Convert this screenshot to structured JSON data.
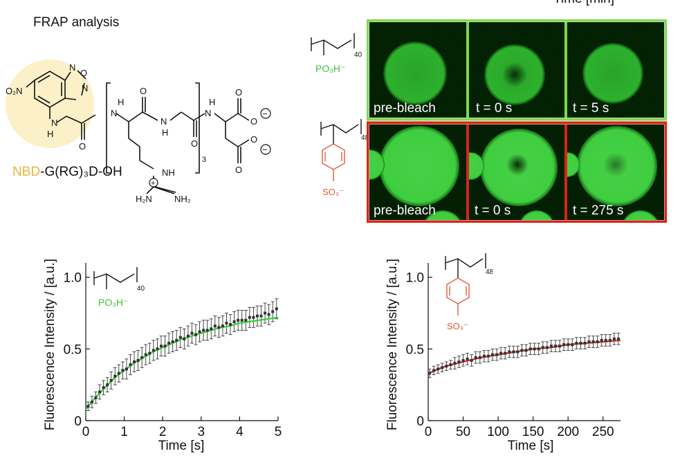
{
  "header": {
    "title": "FRAP analysis",
    "time_cut": "Time [min]"
  },
  "molecule": {
    "atoms": {
      "nitro": "O₂N",
      "ring_n_top": "N",
      "ring_o": "O",
      "ring_n_right": "N",
      "nh_1": "N",
      "h_1": "H",
      "nh_2": "H",
      "n_2": "N",
      "nh_3": "N",
      "h_3": "H",
      "nh_4": "H",
      "n_4": "N",
      "o_1": "O",
      "o_2": "O",
      "o_3": "O",
      "o_4": "O",
      "o_5": "O",
      "o_6": "O",
      "o_7": "O",
      "nh_g": "NH",
      "h2n": "H₂N",
      "nh2": "NH₂",
      "repeat": "3",
      "plus": "+",
      "minus": "−"
    },
    "label_prefix": "NBD",
    "label_suffix": "-G(RG)₃D-OH",
    "prefix_color": "#E8B53A",
    "highlight_color": "#FBF0C8"
  },
  "polymers": {
    "po3": {
      "n": "40",
      "group": "PO₃H⁻",
      "color": "#3DBE3D"
    },
    "so3": {
      "n": "48",
      "group": "SO₃⁻",
      "color": "#E05A3A"
    }
  },
  "micrographs": {
    "top_border": "#7FD855",
    "bottom_border": "#D62518",
    "top_labels": [
      "pre-bleach",
      "t = 0 s",
      "t = 5 s"
    ],
    "bottom_labels": [
      "pre-bleach",
      "t = 0 s",
      "t = 275 s"
    ]
  },
  "chart_data": [
    {
      "type": "scatter",
      "ylabel": "Fluorescence Intensity / [a.u.]",
      "xlabel": "Time [s]",
      "xlim": [
        0,
        5
      ],
      "ylim": [
        0,
        1.1
      ],
      "x_ticks": [
        "0",
        "1",
        "2",
        "3",
        "4",
        "5"
      ],
      "y_ticks": [
        "0",
        "0.5",
        "1.0"
      ],
      "fit_color": "#3CD33C",
      "data": {
        "x": [
          0.06,
          0.16,
          0.26,
          0.36,
          0.46,
          0.56,
          0.66,
          0.76,
          0.86,
          0.96,
          1.06,
          1.16,
          1.26,
          1.36,
          1.46,
          1.56,
          1.66,
          1.76,
          1.86,
          1.96,
          2.06,
          2.16,
          2.26,
          2.36,
          2.46,
          2.56,
          2.66,
          2.76,
          2.86,
          2.96,
          3.06,
          3.16,
          3.26,
          3.36,
          3.46,
          3.56,
          3.66,
          3.76,
          3.86,
          3.96,
          4.06,
          4.16,
          4.26,
          4.36,
          4.46,
          4.56,
          4.66,
          4.76,
          4.86,
          4.96
        ],
        "y": [
          0.1,
          0.13,
          0.16,
          0.2,
          0.23,
          0.25,
          0.28,
          0.31,
          0.33,
          0.35,
          0.36,
          0.39,
          0.41,
          0.42,
          0.44,
          0.46,
          0.47,
          0.49,
          0.5,
          0.52,
          0.52,
          0.54,
          0.55,
          0.56,
          0.58,
          0.57,
          0.59,
          0.61,
          0.6,
          0.62,
          0.63,
          0.63,
          0.64,
          0.66,
          0.65,
          0.66,
          0.68,
          0.67,
          0.69,
          0.7,
          0.7,
          0.7,
          0.72,
          0.72,
          0.73,
          0.73,
          0.75,
          0.74,
          0.76,
          0.78
        ],
        "err": [
          0.03,
          0.04,
          0.04,
          0.05,
          0.05,
          0.05,
          0.06,
          0.06,
          0.06,
          0.06,
          0.07,
          0.07,
          0.07,
          0.07,
          0.07,
          0.07,
          0.07,
          0.07,
          0.07,
          0.07,
          0.07,
          0.07,
          0.07,
          0.07,
          0.07,
          0.07,
          0.07,
          0.07,
          0.07,
          0.07,
          0.07,
          0.07,
          0.07,
          0.07,
          0.07,
          0.07,
          0.07,
          0.07,
          0.07,
          0.07,
          0.07,
          0.07,
          0.07,
          0.07,
          0.07,
          0.07,
          0.07,
          0.07,
          0.07,
          0.07
        ]
      },
      "fit": {
        "x": [
          0,
          0.25,
          0.5,
          0.75,
          1,
          1.25,
          1.5,
          1.75,
          2,
          2.25,
          2.5,
          2.75,
          3,
          3.25,
          3.5,
          3.75,
          4,
          4.25,
          4.5,
          4.75,
          5
        ],
        "y": [
          0.08,
          0.16,
          0.23,
          0.3,
          0.35,
          0.4,
          0.44,
          0.48,
          0.51,
          0.54,
          0.57,
          0.59,
          0.61,
          0.63,
          0.65,
          0.66,
          0.68,
          0.69,
          0.7,
          0.71,
          0.72
        ]
      }
    },
    {
      "type": "scatter",
      "ylabel": "Fluorescence Intensity / [a.u.]",
      "xlabel": "Time [s]",
      "xlim": [
        0,
        275
      ],
      "ylim": [
        0,
        1.1
      ],
      "x_ticks": [
        "0",
        "50",
        "100",
        "150",
        "200",
        "250"
      ],
      "y_ticks": [
        "0",
        "0.5",
        "1.0"
      ],
      "fit_color": "#D6342A",
      "data": {
        "x": [
          2,
          8,
          14,
          20,
          26,
          32,
          38,
          44,
          50,
          56,
          62,
          68,
          74,
          80,
          86,
          92,
          98,
          104,
          110,
          116,
          122,
          128,
          134,
          140,
          146,
          152,
          158,
          164,
          170,
          176,
          182,
          188,
          194,
          200,
          206,
          212,
          218,
          224,
          230,
          236,
          242,
          248,
          254,
          260,
          266,
          272
        ],
        "y": [
          0.33,
          0.35,
          0.36,
          0.37,
          0.38,
          0.39,
          0.4,
          0.41,
          0.42,
          0.43,
          0.42,
          0.44,
          0.44,
          0.45,
          0.45,
          0.46,
          0.46,
          0.47,
          0.47,
          0.48,
          0.48,
          0.48,
          0.49,
          0.49,
          0.5,
          0.5,
          0.5,
          0.51,
          0.51,
          0.52,
          0.52,
          0.52,
          0.53,
          0.53,
          0.53,
          0.54,
          0.54,
          0.54,
          0.55,
          0.55,
          0.55,
          0.56,
          0.56,
          0.56,
          0.57,
          0.57
        ],
        "err": [
          0.03,
          0.03,
          0.03,
          0.03,
          0.03,
          0.03,
          0.04,
          0.04,
          0.04,
          0.04,
          0.04,
          0.04,
          0.04,
          0.04,
          0.04,
          0.04,
          0.04,
          0.04,
          0.04,
          0.04,
          0.04,
          0.04,
          0.04,
          0.04,
          0.04,
          0.04,
          0.04,
          0.04,
          0.04,
          0.04,
          0.04,
          0.04,
          0.04,
          0.04,
          0.04,
          0.04,
          0.04,
          0.04,
          0.04,
          0.04,
          0.04,
          0.04,
          0.04,
          0.04,
          0.04,
          0.04
        ]
      },
      "fit": {
        "x": [
          0,
          25,
          50,
          75,
          100,
          125,
          150,
          175,
          200,
          225,
          250,
          275
        ],
        "y": [
          0.33,
          0.38,
          0.41,
          0.44,
          0.46,
          0.48,
          0.5,
          0.51,
          0.53,
          0.54,
          0.55,
          0.56
        ]
      }
    }
  ]
}
